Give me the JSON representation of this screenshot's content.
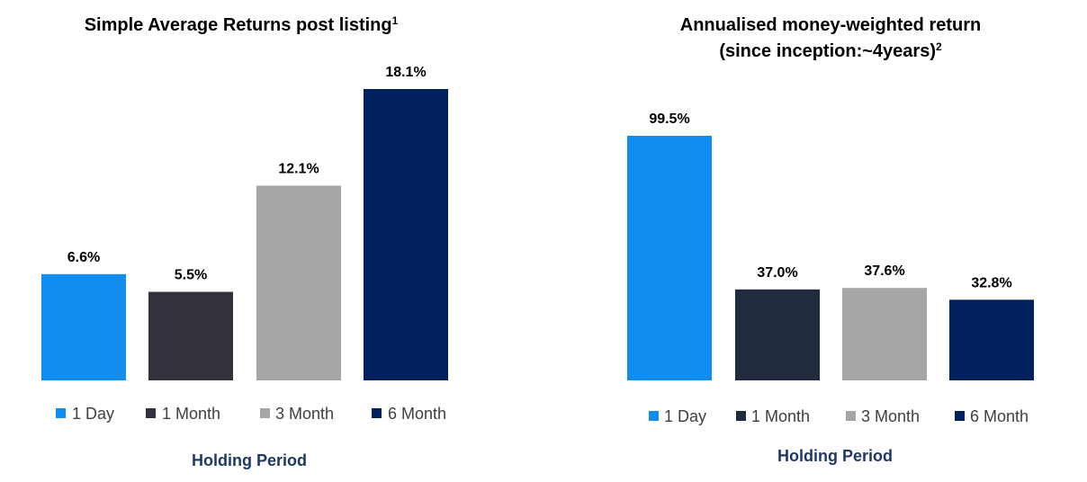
{
  "chart_data": [
    {
      "type": "bar",
      "title": "Simple Average Returns post listing",
      "title_superscript": "1",
      "xlabel": "Holding Period",
      "ylabel": "",
      "ylim": [
        0,
        20
      ],
      "grid": false,
      "legend_position": "bottom",
      "categories": [
        "1 Day",
        "1 Month",
        "3 Month",
        "6 Month"
      ],
      "values": [
        6.6,
        5.5,
        12.1,
        18.1
      ],
      "data_labels": [
        "6.6%",
        "5.5%",
        "12.1%",
        "18.1%"
      ],
      "colors": [
        "#118df0",
        "#31323c",
        "#a6a6a6",
        "#00215e"
      ]
    },
    {
      "type": "bar",
      "title": "Annualised money-weighted return",
      "title_line2": "(since inception:~4years)",
      "title_superscript": "2",
      "xlabel": "Holding Period",
      "ylabel": "",
      "ylim": [
        0,
        110
      ],
      "grid": false,
      "legend_position": "bottom",
      "categories": [
        "1 Day",
        "1 Month",
        "3 Month",
        "6 Month"
      ],
      "values": [
        99.5,
        37.0,
        37.6,
        32.8
      ],
      "data_labels": [
        "99.5%",
        "37.0%",
        "37.6%",
        "32.8%"
      ],
      "colors": [
        "#118df0",
        "#222a40",
        "#a6a6a6",
        "#00215e"
      ]
    }
  ]
}
